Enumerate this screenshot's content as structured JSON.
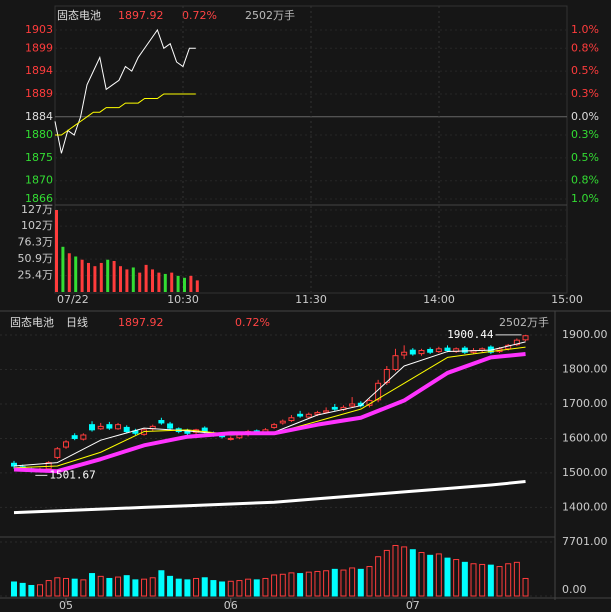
{
  "chart_data": [
    {
      "type": "intraday",
      "title": "固态电池",
      "price": "1897.92",
      "change": "0.72%",
      "volume": "2502万手",
      "xlim": [
        0,
        240
      ],
      "xticks": [
        {
          "value": 0,
          "label": "07/22"
        },
        {
          "value": 60,
          "label": "10:30"
        },
        {
          "value": 120,
          "label": "11:30"
        },
        {
          "value": 180,
          "label": "14:00"
        },
        {
          "value": 240,
          "label": "15:00"
        }
      ],
      "ylim": [
        1866,
        1903
      ],
      "yticks": [
        1903,
        1899,
        1894,
        1889,
        1884,
        1880,
        1875,
        1870,
        1866
      ],
      "pct_labels": [
        "1.0%",
        "0.8%",
        "0.5%",
        "0.3%",
        "0.0%",
        "0.3%",
        "0.5%",
        "0.8%",
        "1.0%"
      ],
      "minutes": [
        0,
        3,
        6,
        9,
        12,
        15,
        18,
        21,
        24,
        27,
        30,
        33,
        36,
        39,
        42,
        45,
        48,
        51,
        54,
        57,
        60,
        63,
        66
      ],
      "price_values": [
        1883,
        1876,
        1881,
        1880,
        1884,
        1891,
        1894,
        1897,
        1890,
        1891,
        1892,
        1895,
        1894,
        1897,
        1899,
        1901,
        1903,
        1899,
        1900,
        1896,
        1895,
        1899,
        1899
      ],
      "avg_values": [
        1880,
        1880,
        1881,
        1882,
        1883,
        1884,
        1885,
        1885,
        1886,
        1886,
        1886,
        1887,
        1887,
        1887,
        1888,
        1888,
        1888,
        1889,
        1889,
        1889,
        1889,
        1889,
        1889
      ],
      "vol_values": [
        127,
        70,
        60,
        55,
        50,
        45,
        40,
        45,
        50,
        48,
        40,
        35,
        38,
        30,
        42,
        35,
        30,
        28,
        30,
        25,
        22,
        25,
        18
      ],
      "vol_ylim": [
        0,
        127
      ],
      "vol_yticks": [
        {
          "value": 127,
          "label": "127万"
        },
        {
          "value": 102,
          "label": "102万"
        },
        {
          "value": 76.3,
          "label": "76.3万"
        },
        {
          "value": 50.9,
          "label": "50.9万"
        },
        {
          "value": 25.4,
          "label": "25.4万"
        }
      ]
    },
    {
      "type": "candlestick",
      "title": "固态电池",
      "period": "日线",
      "price": "1897.92",
      "change": "0.72%",
      "volume": "2502万手",
      "ylim": [
        1320,
        1929
      ],
      "yticks": [
        {
          "value": 1900,
          "label": "1900.00"
        },
        {
          "value": 1800,
          "label": "1800.00"
        },
        {
          "value": 1700,
          "label": "1700.00"
        },
        {
          "value": 1600,
          "label": "1600.00"
        },
        {
          "value": 1500,
          "label": "1500.00"
        },
        {
          "value": 1400,
          "label": "1400.00"
        }
      ],
      "open": [
        1528,
        1518,
        1512,
        1506,
        1512,
        1545,
        1575,
        1608,
        1598,
        1640,
        1628,
        1640,
        1628,
        1632,
        1622,
        1612,
        1628,
        1652,
        1642,
        1628,
        1622,
        1618,
        1630,
        1615,
        1612,
        1598,
        1602,
        1612,
        1622,
        1618,
        1632,
        1645,
        1652,
        1670,
        1662,
        1670,
        1676,
        1690,
        1684,
        1694,
        1702,
        1696,
        1712,
        1762,
        1800,
        1842,
        1856,
        1846,
        1858,
        1852,
        1862,
        1852,
        1862,
        1850,
        1855,
        1865,
        1852,
        1860,
        1872,
        1886
      ],
      "high": [
        1535,
        1524,
        1515,
        1515,
        1534,
        1575,
        1595,
        1615,
        1615,
        1650,
        1645,
        1648,
        1645,
        1638,
        1628,
        1628,
        1640,
        1660,
        1648,
        1632,
        1628,
        1628,
        1635,
        1620,
        1616,
        1606,
        1614,
        1625,
        1626,
        1630,
        1645,
        1655,
        1668,
        1680,
        1675,
        1680,
        1690,
        1700,
        1696,
        1720,
        1708,
        1715,
        1770,
        1810,
        1860,
        1870,
        1862,
        1860,
        1864,
        1866,
        1870,
        1864,
        1868,
        1862,
        1864,
        1870,
        1865,
        1874,
        1890,
        1900.44
      ],
      "low": [
        1512,
        1505,
        1501.67,
        1502,
        1508,
        1540,
        1570,
        1595,
        1594,
        1620,
        1625,
        1625,
        1625,
        1615,
        1610,
        1608,
        1622,
        1640,
        1625,
        1615,
        1610,
        1612,
        1615,
        1605,
        1600,
        1594,
        1598,
        1606,
        1610,
        1612,
        1628,
        1640,
        1648,
        1660,
        1660,
        1665,
        1672,
        1680,
        1680,
        1690,
        1690,
        1690,
        1705,
        1755,
        1795,
        1830,
        1840,
        1840,
        1845,
        1848,
        1850,
        1848,
        1845,
        1845,
        1850,
        1845,
        1848,
        1855,
        1868,
        1882
      ],
      "close": [
        1520,
        1510,
        1505,
        1510,
        1530,
        1570,
        1590,
        1600,
        1610,
        1625,
        1635,
        1630,
        1640,
        1620,
        1615,
        1625,
        1635,
        1645,
        1630,
        1620,
        1615,
        1625,
        1620,
        1610,
        1605,
        1600,
        1610,
        1620,
        1615,
        1625,
        1640,
        1650,
        1660,
        1665,
        1670,
        1675,
        1680,
        1685,
        1690,
        1700,
        1695,
        1710,
        1760,
        1800,
        1840,
        1850,
        1845,
        1855,
        1850,
        1860,
        1855,
        1860,
        1850,
        1855,
        1860,
        1850,
        1860,
        1870,
        1885,
        1897.92
      ],
      "ma_index": [
        0,
        5,
        10,
        15,
        20,
        25,
        30,
        35,
        40,
        45,
        50,
        55,
        59
      ],
      "ma_lines": [
        {
          "color": "#ffffff",
          "width": 1,
          "values": [
            1520,
            1530,
            1595,
            1630,
            1622,
            1610,
            1618,
            1668,
            1695,
            1810,
            1852,
            1856,
            1880
          ]
        },
        {
          "color": "#ffff00",
          "width": 1,
          "values": [
            1515,
            1520,
            1560,
            1620,
            1625,
            1612,
            1615,
            1650,
            1685,
            1760,
            1835,
            1852,
            1865
          ]
        },
        {
          "color": "#ff33ff",
          "width": 4,
          "values": [
            1510,
            1505,
            1540,
            1580,
            1605,
            1615,
            1615,
            1640,
            1660,
            1710,
            1790,
            1835,
            1845
          ]
        },
        {
          "color": "#ffffff",
          "width": 3,
          "values": [
            1385,
            1390,
            1395,
            1400,
            1405,
            1410,
            1415,
            1425,
            1435,
            1445,
            1455,
            1465,
            1475
          ]
        }
      ],
      "volume_values": [
        2000,
        1800,
        1500,
        1600,
        2200,
        2600,
        2500,
        2400,
        2300,
        3200,
        2800,
        2500,
        2700,
        2900,
        2300,
        2400,
        2600,
        3600,
        2800,
        2400,
        2300,
        2500,
        2600,
        2200,
        2000,
        2100,
        2200,
        2400,
        2300,
        2500,
        3000,
        3100,
        3300,
        3200,
        3400,
        3500,
        3600,
        3800,
        3700,
        4000,
        3800,
        4200,
        5600,
        6500,
        7200,
        7000,
        6600,
        6200,
        5800,
        6000,
        5400,
        5200,
        4800,
        4600,
        4500,
        4400,
        4200,
        4600,
        4800,
        2500
      ],
      "vol_ylim": [
        0,
        7701
      ],
      "vol_yticks": [
        {
          "value": 7701,
          "label": "7701.00"
        },
        {
          "value": 0,
          "label": "0.00"
        }
      ],
      "months": [
        {
          "index": 6,
          "label": "05"
        },
        {
          "index": 25,
          "label": "06"
        },
        {
          "index": 46,
          "label": "07"
        }
      ],
      "annotations": [
        {
          "index": 59,
          "value": 1900.44,
          "side": "left"
        },
        {
          "index": 2,
          "value": 1501.67,
          "side": "right"
        }
      ]
    }
  ]
}
